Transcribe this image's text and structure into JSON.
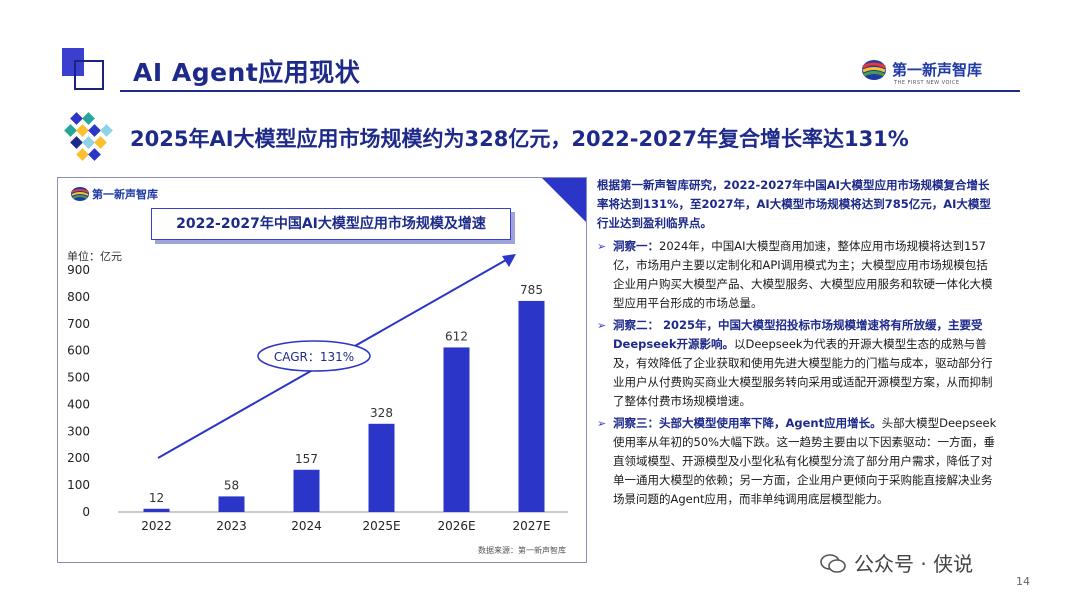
{
  "header": {
    "title": "AI Agent应用现状"
  },
  "brand": {
    "name": "第一新声智库",
    "sub": "THE FIRST NEW VOICE"
  },
  "subtitle": "2025年AI大模型应用市场规模约为328亿元，2022-2027年复合增长率达131%",
  "panel": {
    "logo_name": "第一新声智库",
    "title": "2022-2027年中国AI大模型应用市场规模及增速",
    "unit": "单位：亿元",
    "cagr": "CAGR：131%",
    "source": "数据来源：第一新声智库"
  },
  "chart_data": {
    "type": "bar",
    "title": "2022-2027年中国AI大模型应用市场规模及增速",
    "ylabel": "单位：亿元",
    "categories": [
      "2022",
      "2023",
      "2024",
      "2025E",
      "2026E",
      "2027E"
    ],
    "values": [
      12,
      58,
      157,
      328,
      612,
      785
    ],
    "yticks": [
      0,
      100,
      200,
      300,
      400,
      500,
      600,
      700,
      800,
      900
    ],
    "ylim": [
      0,
      900
    ],
    "annotation": "CAGR：131%",
    "bar_color": "#2b35c8"
  },
  "right_text": {
    "lead": "根据第一新声智库研究，2022-2027年中国AI大模型应用市场规模复合增长率将达到131%，至2027年，AI大模型市场规模将达到785亿元，AI大模型行业达到盈利临界点。",
    "points": [
      {
        "head": "洞察一：",
        "bold": "",
        "body": "2024年，中国AI大模型商用加速，整体应用市场规模将达到157亿，市场用户主要以定制化和API调用模式为主；大模型应用市场规模包括企业用户购买大模型产品、大模型服务、大模型应用服务和软硬一体化大模型应用平台形成的市场总量。"
      },
      {
        "head": "洞察二：",
        "bold": "  2025年，中国大模型招投标市场规模增速将有所放缓，主要受Deepseek开源影响。",
        "body": "以Deepseek为代表的开源大模型生态的成熟与普及，有效降低了企业获取和使用先进大模型能力的门槛与成本，驱动部分行业用户从付费购买商业大模型服务转向采用或适配开源模型方案，从而抑制了整体付费市场规模增速。"
      },
      {
        "head": "洞察三：",
        "bold": "头部大模型使用率下降，Agent应用增长。",
        "body": "头部大模型Deepseek使用率从年初的50%大幅下跌。这一趋势主要由以下因素驱动：一方面，垂直领域模型、开源模型及小型化私有化模型分流了部分用户需求，降低了对单一通用大模型的依赖；另一方面，企业用户更倾向于采购能直接解决业务场景问题的Agent应用，而非单纯调用底层模型能力。"
      }
    ]
  },
  "watermark": "公众号 · 侠说",
  "page_number": "14",
  "colors": {
    "primary": "#1e2a8a",
    "accent": "#2b35c8"
  }
}
